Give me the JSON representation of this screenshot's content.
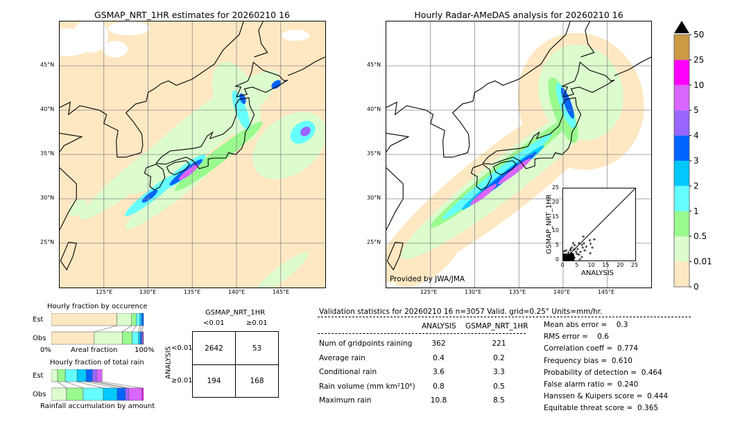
{
  "left_map": {
    "title": "GSMAP_NRT_1HR estimates for 20260210 16"
  },
  "right_map": {
    "title": "Hourly Radar-AMeDAS analysis for 20260210 16",
    "credit": "Provided by JWA/JMA"
  },
  "lon_ticks": [
    "125°E",
    "130°E",
    "135°E",
    "140°E",
    "145°E"
  ],
  "lat_ticks": [
    "45°N",
    "40°N",
    "35°N",
    "30°N",
    "25°N"
  ],
  "colorbar": {
    "labels": [
      "0",
      "0.01",
      "0.5",
      "1",
      "2",
      "3",
      "4",
      "5",
      "10",
      "25",
      "50"
    ],
    "colors": [
      "#fee8c2",
      "#dcfcce",
      "#99fa8e",
      "#66ffff",
      "#00c8ff",
      "#0064ff",
      "#9966ff",
      "#d966ff",
      "#ff00ff",
      "#cc9944"
    ],
    "extend_color": "#000000"
  },
  "scatter": {
    "xlabel": "ANALYSIS",
    "ylabel": "GSMAP_NRT_1HR",
    "ticks": [
      "0",
      "5",
      "10",
      "15",
      "20",
      "25"
    ],
    "xlim": [
      0,
      25
    ],
    "ylim": [
      0,
      25
    ],
    "points": [
      [
        7,
        8.3
      ],
      [
        9.2,
        7
      ],
      [
        10.8,
        7.3
      ],
      [
        9.5,
        5.8
      ],
      [
        8,
        4.8
      ],
      [
        10.1,
        4.5
      ],
      [
        9.4,
        2.5
      ],
      [
        6.5,
        5.5
      ],
      [
        7.2,
        6
      ],
      [
        5.5,
        6
      ],
      [
        4,
        5.3
      ],
      [
        3.5,
        6
      ],
      [
        3,
        4.5
      ],
      [
        5,
        4
      ],
      [
        6,
        3
      ],
      [
        6.5,
        1.2
      ],
      [
        5.5,
        2
      ],
      [
        4.5,
        3
      ],
      [
        4,
        1
      ],
      [
        3,
        2.5
      ],
      [
        2.5,
        3.5
      ],
      [
        2,
        2
      ],
      [
        1.5,
        1
      ],
      [
        1,
        3.5
      ],
      [
        0.5,
        2
      ],
      [
        1.2,
        0.5
      ],
      [
        2.8,
        1.2
      ],
      [
        3.5,
        0.3
      ],
      [
        0.3,
        0.8
      ],
      [
        1.8,
        2.8
      ],
      [
        0.8,
        1.5
      ],
      [
        2.2,
        0.2
      ],
      [
        4.8,
        2.3
      ],
      [
        3.8,
        3.8
      ],
      [
        1,
        0.1
      ],
      [
        0.4,
        3.2
      ],
      [
        2.6,
        4
      ],
      [
        5.8,
        0.4
      ],
      [
        7.5,
        3.5
      ],
      [
        6.8,
        4.5
      ]
    ]
  },
  "occurrence": {
    "title": "Hourly fraction by occurence",
    "rows": [
      {
        "label": "Est",
        "fractions": [
          0.71,
          0.16,
          0.05,
          0.04,
          0.02,
          0.02
        ]
      },
      {
        "label": "Obs",
        "fractions": [
          0.465,
          0.305,
          0.105,
          0.07,
          0.02,
          0.015,
          0.015,
          0.005
        ]
      }
    ],
    "xlabel_left": "0%",
    "xlabel_mid": "Areal fraction",
    "xlabel_right": "100%"
  },
  "total_rain": {
    "title": "Hourly fraction of total rain",
    "rows": [
      {
        "label": "Est",
        "fractions": [
          0.068,
          0.083,
          0.128,
          0.098,
          0.068,
          0.045,
          0.06
        ]
      },
      {
        "label": "Obs",
        "fractions": [
          0.165,
          0.18,
          0.218,
          0.15,
          0.09,
          0.037,
          0.143,
          0.015
        ]
      }
    ],
    "xlabel": "Rainfall accumulation by amount"
  },
  "contingency": {
    "title": "GSMAP_NRT_1HR",
    "col_headers": [
      "<0.01",
      "≥0.01"
    ],
    "row_title": "ANALYSIS",
    "row_headers": [
      "<0.01",
      "≥0.01"
    ],
    "cells": [
      [
        "2642",
        "53"
      ],
      [
        "194",
        "168"
      ]
    ]
  },
  "stats": {
    "header": "Validation statistics for 20260210 16  n=3057 Valid. grid=0.25° Units=mm/hr.",
    "col_analysis": "ANALYSIS",
    "col_gsmap": "GSMAP_NRT_1HR",
    "rows": [
      {
        "label": "Num of gridpoints raining",
        "analysis": "362",
        "gsmap": "221"
      },
      {
        "label": "Average rain",
        "analysis": "0.4",
        "gsmap": "0.2"
      },
      {
        "label": "Conditional rain",
        "analysis": "3.6",
        "gsmap": "3.3"
      },
      {
        "label": "Rain volume (mm km²10⁶)",
        "analysis": "0.8",
        "gsmap": "0.5"
      },
      {
        "label": "Maximum rain",
        "analysis": "10.8",
        "gsmap": "8.5"
      }
    ],
    "scores": [
      "Mean abs error =    0.3",
      "RMS error =    0.6",
      "Correlation coeff =  0.774",
      "Frequency bias =  0.610",
      "Probability of detection =  0.464",
      "False alarm ratio =  0.240",
      "Hanssen & Kuipers score =  0.444",
      "Equitable threat score =  0.365"
    ]
  }
}
